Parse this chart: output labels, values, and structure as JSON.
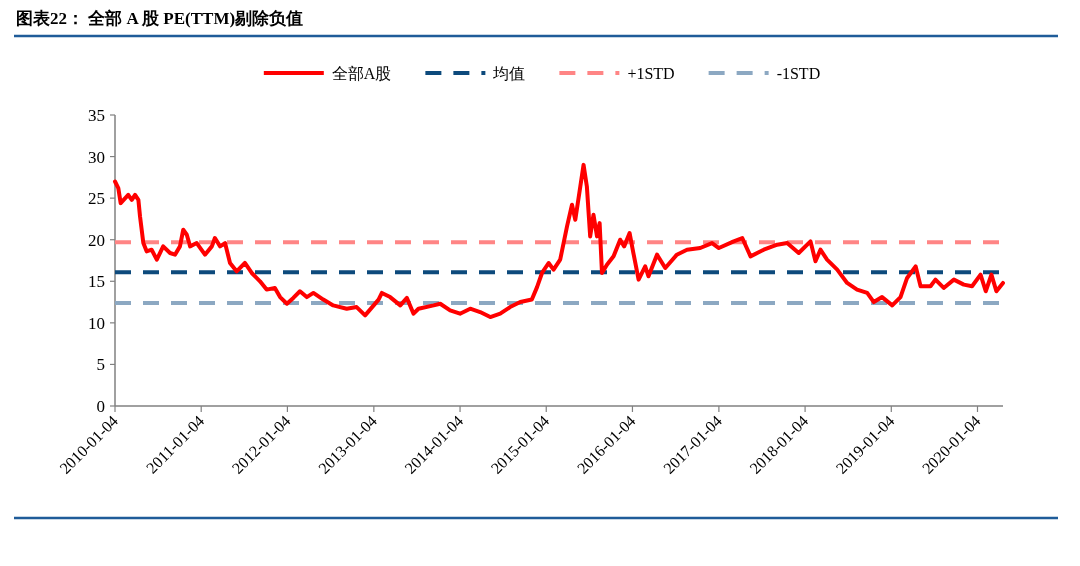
{
  "chart_data": {
    "type": "line",
    "title": "图表22： 全部 A 股 PE(TTM)剔除负值",
    "legend": "top",
    "xlim": [
      "2010-01-04",
      "2020-04-21"
    ],
    "xticks": [
      "2010-01-04",
      "2011-01-04",
      "2012-01-04",
      "2013-01-04",
      "2014-01-04",
      "2015-01-04",
      "2016-01-04",
      "2017-01-04",
      "2018-01-04",
      "2019-01-04",
      "2020-01-04"
    ],
    "ylim": [
      0,
      35
    ],
    "yticks": [
      0,
      5,
      10,
      15,
      20,
      25,
      30,
      35
    ],
    "x": [
      "2010-01-04",
      "2010-01-18",
      "2010-01-28",
      "2010-03-01",
      "2010-03-16",
      "2010-03-30",
      "2010-04-13",
      "2010-04-20",
      "2010-05-04",
      "2010-05-18",
      "2010-06-08",
      "2010-06-30",
      "2010-07-27",
      "2010-08-25",
      "2010-09-15",
      "2010-10-06",
      "2010-10-20",
      "2010-11-04",
      "2010-11-18",
      "2010-12-16",
      "2011-01-20",
      "2011-02-18",
      "2011-03-03",
      "2011-03-25",
      "2011-04-15",
      "2011-05-06",
      "2011-06-03",
      "2011-07-08",
      "2011-08-06",
      "2011-09-10",
      "2011-10-08",
      "2011-11-12",
      "2011-12-04",
      "2012-01-02",
      "2012-01-29",
      "2012-02-26",
      "2012-03-26",
      "2012-04-23",
      "2012-06-04",
      "2012-07-16",
      "2012-09-11",
      "2012-10-23",
      "2012-11-28",
      "2013-01-24",
      "2013-02-07",
      "2013-03-14",
      "2013-04-26",
      "2013-05-24",
      "2013-06-21",
      "2013-07-12",
      "2013-09-14",
      "2013-10-12",
      "2013-11-23",
      "2014-01-04",
      "2014-02-16",
      "2014-03-30",
      "2014-05-12",
      "2014-06-23",
      "2014-08-04",
      "2014-09-16",
      "2014-11-04",
      "2014-11-26",
      "2014-12-17",
      "2015-01-14",
      "2015-02-04",
      "2015-03-04",
      "2015-04-02",
      "2015-04-23",
      "2015-05-07",
      "2015-06-11",
      "2015-06-25",
      "2015-07-09",
      "2015-07-23",
      "2015-08-07",
      "2015-08-18",
      "2015-08-28",
      "2015-09-18",
      "2015-10-16",
      "2015-11-13",
      "2015-11-30",
      "2015-12-23",
      "2016-01-08",
      "2016-01-30",
      "2016-02-27",
      "2016-03-12",
      "2016-04-17",
      "2016-05-22",
      "2016-07-10",
      "2016-08-22",
      "2016-10-17",
      "2016-12-06",
      "2017-01-04",
      "2017-03-08",
      "2017-04-13",
      "2017-05-18",
      "2017-07-13",
      "2017-09-08",
      "2017-10-20",
      "2017-12-08",
      "2018-01-27",
      "2018-02-17",
      "2018-03-10",
      "2018-04-07",
      "2018-05-20",
      "2018-07-01",
      "2018-08-12",
      "2018-09-24",
      "2018-10-22",
      "2018-11-26",
      "2019-01-08",
      "2019-02-12",
      "2019-03-12",
      "2019-04-17",
      "2019-05-08",
      "2019-06-19",
      "2019-07-10",
      "2019-08-14",
      "2019-09-26",
      "2019-11-07",
      "2019-12-12",
      "2020-01-17",
      "2020-02-08",
      "2020-03-03",
      "2020-03-24",
      "2020-04-21"
    ],
    "series": [
      {
        "name": "全部A股",
        "color": "#ff0000",
        "values": [
          27.0,
          26.2,
          24.4,
          25.4,
          24.8,
          25.4,
          24.8,
          22.8,
          19.6,
          18.6,
          18.8,
          17.6,
          19.2,
          18.4,
          18.2,
          19.2,
          21.2,
          20.6,
          19.2,
          19.6,
          18.2,
          19.2,
          20.2,
          19.2,
          19.6,
          17.2,
          16.2,
          17.2,
          16.0,
          15.0,
          14.0,
          14.2,
          13.1,
          12.3,
          13.0,
          13.8,
          13.1,
          13.6,
          12.8,
          12.1,
          11.7,
          11.9,
          10.9,
          12.8,
          13.6,
          13.1,
          12.1,
          13.0,
          11.1,
          11.7,
          12.1,
          12.3,
          11.5,
          11.1,
          11.7,
          11.3,
          10.7,
          11.1,
          11.9,
          12.5,
          12.8,
          14.3,
          16.0,
          17.2,
          16.4,
          17.6,
          21.6,
          24.2,
          22.4,
          29.0,
          26.4,
          20.4,
          23.0,
          20.4,
          22.0,
          16.0,
          17.0,
          18.0,
          20.0,
          19.2,
          20.8,
          18.4,
          15.2,
          16.8,
          15.6,
          18.2,
          16.6,
          18.2,
          18.8,
          19.0,
          19.6,
          19.0,
          19.8,
          20.2,
          18.0,
          18.8,
          19.4,
          19.6,
          18.4,
          19.8,
          17.4,
          18.8,
          17.6,
          16.4,
          14.8,
          14.0,
          13.6,
          12.5,
          13.1,
          12.1,
          13.1,
          15.4,
          16.8,
          14.4,
          14.4,
          15.2,
          14.2,
          15.2,
          14.6,
          14.4,
          15.8,
          13.8,
          15.8,
          13.8,
          14.8
        ]
      }
    ],
    "ref_lines": [
      {
        "axis": "y",
        "value": 16.1,
        "label": "均值",
        "color": "#0d4a7c",
        "line_style": "dashed"
      },
      {
        "axis": "y",
        "value": 19.7,
        "label": "+1STD",
        "color": "#ff8585",
        "line_style": "dashed"
      },
      {
        "axis": "y",
        "value": 12.4,
        "label": "-1STD",
        "color": "#8ca8c2",
        "line_style": "dashed"
      }
    ]
  }
}
